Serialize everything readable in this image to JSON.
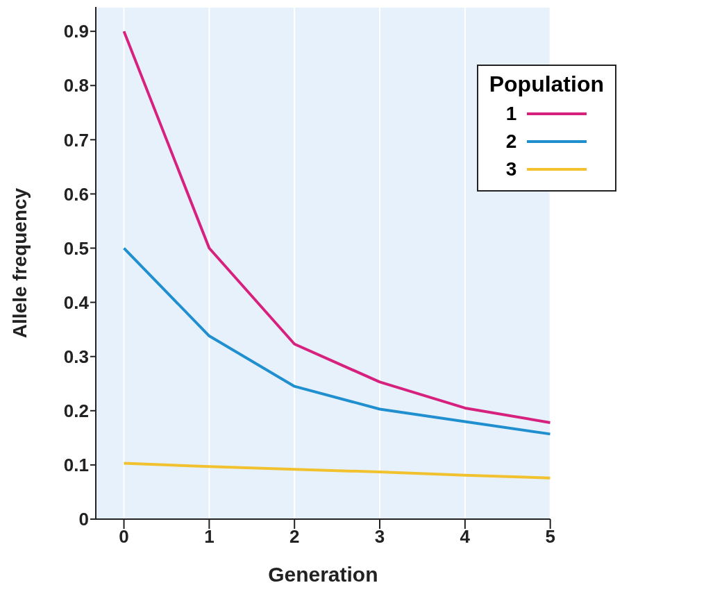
{
  "chart_data": {
    "type": "line",
    "xlabel": "Generation",
    "ylabel": "Allele frequency",
    "legend_title": "Population",
    "x": [
      0,
      1,
      2,
      3,
      4,
      5
    ],
    "series": [
      {
        "name": "1",
        "color": "#d6217f",
        "values": [
          0.9,
          0.5,
          0.323,
          0.253,
          0.205,
          0.178
        ]
      },
      {
        "name": "2",
        "color": "#1f8fd0",
        "values": [
          0.5,
          0.338,
          0.245,
          0.203,
          0.18,
          0.157
        ]
      },
      {
        "name": "3",
        "color": "#f2c12e",
        "values": [
          0.103,
          0.097,
          0.092,
          0.087,
          0.081,
          0.076
        ]
      }
    ],
    "xlim": [
      -0.33,
      5
    ],
    "xticks": [
      0,
      1,
      2,
      3,
      4,
      5
    ],
    "ylim": [
      0,
      0.945
    ],
    "yticks": [
      0,
      0.1,
      0.2,
      0.3,
      0.4,
      0.5,
      0.6,
      0.7,
      0.8,
      0.9
    ],
    "grid": true,
    "legend": "top right",
    "marker": "none",
    "line_style": "solid"
  }
}
